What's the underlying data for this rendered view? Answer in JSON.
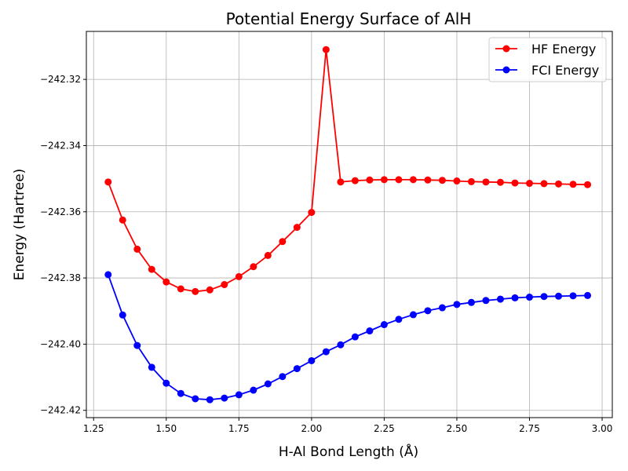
{
  "chart_data": {
    "type": "line",
    "title": "Potential Energy Surface of AlH",
    "xlabel": "H-Al Bond Length (Å)",
    "ylabel": "Energy (Hartree)",
    "xlim": [
      1.225,
      3.035
    ],
    "ylim": [
      -242.4222,
      -242.3055
    ],
    "xticks": [
      1.25,
      1.5,
      1.75,
      2.0,
      2.25,
      2.5,
      2.75,
      3.0
    ],
    "xtick_labels": [
      "1.25",
      "1.50",
      "1.75",
      "2.00",
      "2.25",
      "2.50",
      "2.75",
      "3.00"
    ],
    "yticks": [
      -242.42,
      -242.4,
      -242.38,
      -242.36,
      -242.34,
      -242.32
    ],
    "ytick_labels": [
      "−242.42",
      "−242.40",
      "−242.38",
      "−242.36",
      "−242.34",
      "−242.32"
    ],
    "grid": true,
    "legend_position": "top-right",
    "x": [
      1.3,
      1.35,
      1.4,
      1.45,
      1.5,
      1.55,
      1.6,
      1.65,
      1.7,
      1.75,
      1.8,
      1.85,
      1.9,
      1.95,
      2.0,
      2.05,
      2.1,
      2.15,
      2.2,
      2.25,
      2.3,
      2.35,
      2.4,
      2.45,
      2.5,
      2.55,
      2.6,
      2.65,
      2.7,
      2.75,
      2.8,
      2.85,
      2.9,
      2.95
    ],
    "series": [
      {
        "name": "HF Energy",
        "color": "#ff0000",
        "values": [
          -242.351,
          -242.3625,
          -242.3713,
          -242.3774,
          -242.3812,
          -242.3833,
          -242.3841,
          -242.3836,
          -242.382,
          -242.3796,
          -242.3766,
          -242.3732,
          -242.369,
          -242.3647,
          -242.3602,
          -242.311,
          -242.351,
          -242.3506,
          -242.3504,
          -242.3503,
          -242.3503,
          -242.3503,
          -242.3504,
          -242.3505,
          -242.3507,
          -242.3509,
          -242.351,
          -242.3511,
          -242.3513,
          -242.3514,
          -242.3515,
          -242.3516,
          -242.3517,
          -242.3518
        ]
      },
      {
        "name": "FCI Energy",
        "color": "#0000ff",
        "values": [
          -242.379,
          -242.3912,
          -242.4004,
          -242.407,
          -242.4118,
          -242.4149,
          -242.4165,
          -242.4168,
          -242.4163,
          -242.4153,
          -242.4139,
          -242.412,
          -242.4098,
          -242.4074,
          -242.405,
          -242.4023,
          -242.4002,
          -242.3978,
          -242.396,
          -242.3941,
          -242.3925,
          -242.3911,
          -242.3899,
          -242.389,
          -242.388,
          -242.3874,
          -242.3868,
          -242.3864,
          -242.386,
          -242.3858,
          -242.3856,
          -242.3855,
          -242.3854,
          -242.3853
        ]
      }
    ]
  }
}
